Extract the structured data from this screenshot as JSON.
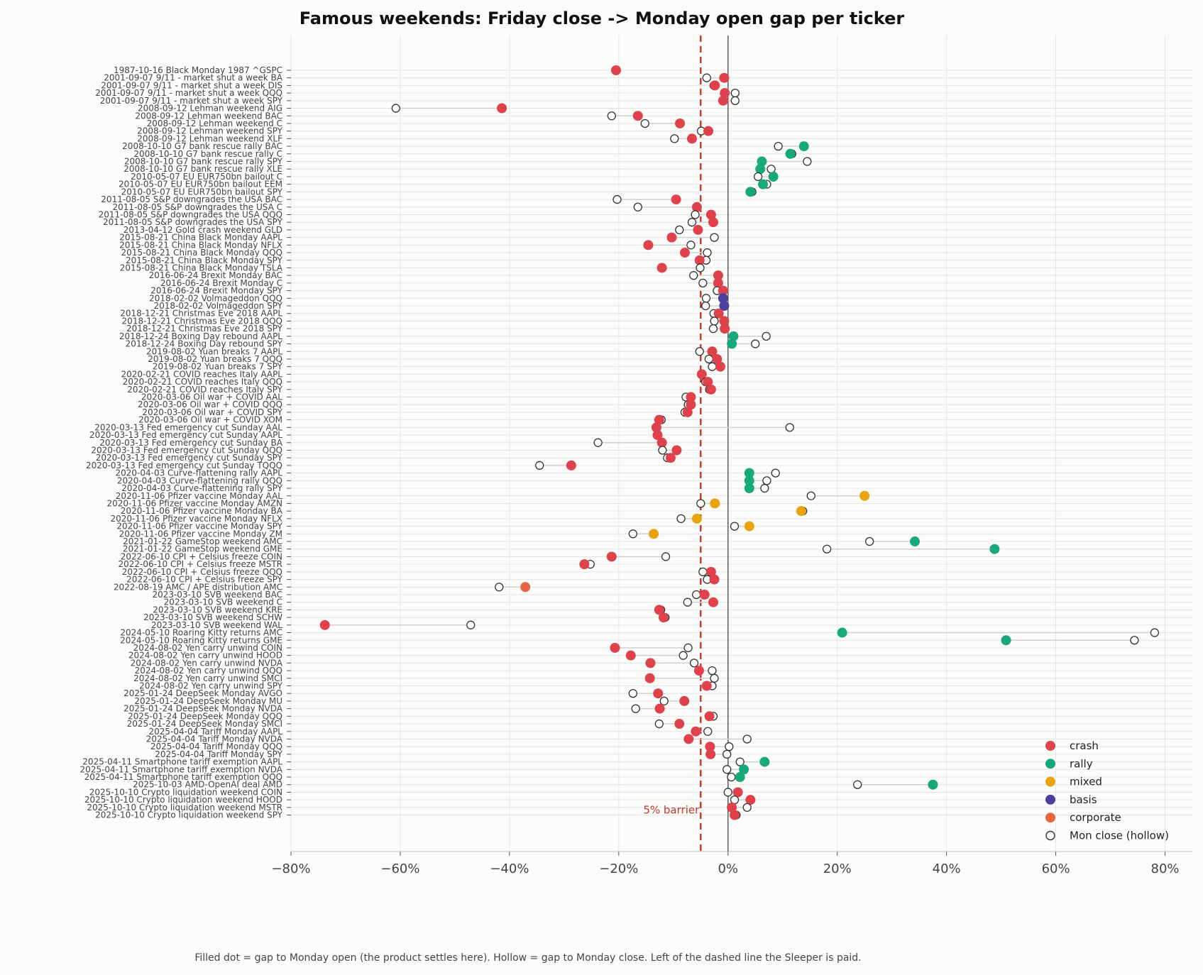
{
  "chart_data": {
    "type": "scatter",
    "title": "Famous weekends: Friday close -> Monday open gap per ticker",
    "xlabel": "",
    "ylabel": "",
    "xlim": [
      -80,
      85
    ],
    "xticks": [
      -80,
      -60,
      -40,
      -20,
      0,
      20,
      40,
      60,
      80
    ],
    "xtick_labels": [
      "−80%",
      "−60%",
      "−40%",
      "−20%",
      "0%",
      "20%",
      "40%",
      "60%",
      "80%"
    ],
    "grid": true,
    "legend_position": "bottom-right",
    "barrier": {
      "value": -5,
      "label": "5% barrier"
    },
    "caption": "Filled dot = gap to Monday open (the product settles here). Hollow = gap to Monday close. Left of the dashed line the Sleeper is paid.",
    "legend": [
      {
        "label": "crash",
        "color": "#e0424b",
        "style": "filled"
      },
      {
        "label": "rally",
        "color": "#17a97c",
        "style": "filled"
      },
      {
        "label": "mixed",
        "color": "#e8a30d",
        "style": "filled"
      },
      {
        "label": "basis",
        "color": "#4b3fa0",
        "style": "filled"
      },
      {
        "label": "corporate",
        "color": "#e8663d",
        "style": "filled"
      },
      {
        "label": "Mon close (hollow)",
        "color": "#333333",
        "style": "hollow"
      }
    ],
    "colors": {
      "crash": "#e0424b",
      "rally": "#17a97c",
      "mixed": "#e8a30d",
      "basis": "#4b3fa0",
      "corporate": "#e8663d"
    },
    "rows": [
      {
        "label": "1987-10-16  Black Monday 1987  ^GSPC",
        "cat": "crash",
        "open": -20.5,
        "close": null
      },
      {
        "label": "2001-09-07  9/11 - market shut a week  BA",
        "cat": "crash",
        "open": -0.7,
        "close": -3.9
      },
      {
        "label": "2001-09-07  9/11 - market shut a week  DIS",
        "cat": "crash",
        "open": -2.4,
        "close": -2.6
      },
      {
        "label": "2001-09-07  9/11 - market shut a week  QQQ",
        "cat": "crash",
        "open": -0.6,
        "close": 1.3
      },
      {
        "label": "2001-09-07  9/11 - market shut a week  SPY",
        "cat": "crash",
        "open": -0.9,
        "close": 1.3
      },
      {
        "label": "2008-09-12  Lehman weekend  AIG",
        "cat": "crash",
        "open": -41.4,
        "close": -60.8
      },
      {
        "label": "2008-09-12  Lehman weekend  BAC",
        "cat": "crash",
        "open": -16.5,
        "close": -21.3
      },
      {
        "label": "2008-09-12  Lehman weekend  C",
        "cat": "crash",
        "open": -8.8,
        "close": -15.2
      },
      {
        "label": "2008-09-12  Lehman weekend  SPY",
        "cat": "crash",
        "open": -3.6,
        "close": -4.9
      },
      {
        "label": "2008-09-12  Lehman weekend  XLF",
        "cat": "crash",
        "open": -6.6,
        "close": -9.8
      },
      {
        "label": "2008-10-10  G7 bank rescue rally  BAC",
        "cat": "rally",
        "open": 13.9,
        "close": 9.2
      },
      {
        "label": "2008-10-10  G7 bank rescue rally  C",
        "cat": "rally",
        "open": 11.4,
        "close": 11.7
      },
      {
        "label": "2008-10-10  G7 bank rescue rally  SPY",
        "cat": "rally",
        "open": 6.2,
        "close": 14.5
      },
      {
        "label": "2008-10-10  G7 bank rescue rally  XLE",
        "cat": "rally",
        "open": 5.9,
        "close": 7.9
      },
      {
        "label": "2010-05-07  EU EUR750bn bailout  C",
        "cat": "rally",
        "open": 8.3,
        "close": 5.5
      },
      {
        "label": "2010-05-07  EU EUR750bn bailout  EEM",
        "cat": "rally",
        "open": 6.4,
        "close": 7.1
      },
      {
        "label": "2010-05-07  EU EUR750bn bailout  SPY",
        "cat": "rally",
        "open": 4.1,
        "close": 4.4
      },
      {
        "label": "2011-08-05  S&P downgrades the USA  BAC",
        "cat": "crash",
        "open": -9.5,
        "close": -20.3
      },
      {
        "label": "2011-08-05  S&P downgrades the USA  C",
        "cat": "crash",
        "open": -5.7,
        "close": -16.5
      },
      {
        "label": "2011-08-05  S&P downgrades the USA  QQQ",
        "cat": "crash",
        "open": -3.1,
        "close": -6.0
      },
      {
        "label": "2011-08-05  S&P downgrades the USA  SPY",
        "cat": "crash",
        "open": -2.7,
        "close": -6.6
      },
      {
        "label": "2013-04-12  Gold crash weekend  GLD",
        "cat": "crash",
        "open": -5.5,
        "close": -8.9
      },
      {
        "label": "2015-08-21  China Black Monday  AAPL",
        "cat": "crash",
        "open": -10.3,
        "close": -2.5
      },
      {
        "label": "2015-08-21  China Black Monday  NFLX",
        "cat": "crash",
        "open": -14.6,
        "close": -6.8
      },
      {
        "label": "2015-08-21  China Black Monday  QQQ",
        "cat": "crash",
        "open": -7.9,
        "close": -3.8
      },
      {
        "label": "2015-08-21  China Black Monday  SPY",
        "cat": "crash",
        "open": -5.2,
        "close": -4.0
      },
      {
        "label": "2015-08-21  China Black Monday  TSLA",
        "cat": "crash",
        "open": -12.1,
        "close": -5.1
      },
      {
        "label": "2016-06-24  Brexit Monday  BAC",
        "cat": "crash",
        "open": -1.8,
        "close": -6.3
      },
      {
        "label": "2016-06-24  Brexit Monday  C",
        "cat": "crash",
        "open": -1.8,
        "close": -4.6
      },
      {
        "label": "2016-06-24  Brexit Monday  SPY",
        "cat": "crash",
        "open": -0.9,
        "close": -2.0
      },
      {
        "label": "2018-02-02  Volmageddon  QQQ",
        "cat": "basis",
        "open": -0.9,
        "close": -4.0
      },
      {
        "label": "2018-02-02  Volmageddon  SPY",
        "cat": "basis",
        "open": -0.7,
        "close": -4.1
      },
      {
        "label": "2018-12-21  Christmas Eve 2018  AAPL",
        "cat": "crash",
        "open": -1.7,
        "close": -2.6
      },
      {
        "label": "2018-12-21  Christmas Eve 2018  QQQ",
        "cat": "crash",
        "open": -0.7,
        "close": -2.5
      },
      {
        "label": "2018-12-21  Christmas Eve 2018  SPY",
        "cat": "crash",
        "open": -0.6,
        "close": -2.7
      },
      {
        "label": "2018-12-24  Boxing Day rebound  AAPL",
        "cat": "rally",
        "open": 1.0,
        "close": 7.0
      },
      {
        "label": "2018-12-24  Boxing Day rebound  SPY",
        "cat": "rally",
        "open": 0.7,
        "close": 5.0
      },
      {
        "label": "2019-08-02  Yuan breaks 7  AAPL",
        "cat": "crash",
        "open": -2.9,
        "close": -5.2
      },
      {
        "label": "2019-08-02  Yuan breaks 7  QQQ",
        "cat": "crash",
        "open": -2.0,
        "close": -3.5
      },
      {
        "label": "2019-08-02  Yuan breaks 7  SPY",
        "cat": "crash",
        "open": -1.4,
        "close": -2.9
      },
      {
        "label": "2020-02-21  COVID reaches Italy  AAPL",
        "cat": "crash",
        "open": -4.8,
        "close": -4.8
      },
      {
        "label": "2020-02-21  COVID reaches Italy  QQQ",
        "cat": "crash",
        "open": -3.7,
        "close": -4.1
      },
      {
        "label": "2020-02-21  COVID reaches Italy  SPY",
        "cat": "crash",
        "open": -3.1,
        "close": -3.4
      },
      {
        "label": "2020-03-06  Oil war + COVID  AAL",
        "cat": "crash",
        "open": -6.8,
        "close": -7.7
      },
      {
        "label": "2020-03-06  Oil war + COVID  QQQ",
        "cat": "crash",
        "open": -6.8,
        "close": -7.3
      },
      {
        "label": "2020-03-06  Oil war + COVID  SPY",
        "cat": "crash",
        "open": -7.4,
        "close": -7.9
      },
      {
        "label": "2020-03-06  Oil war + COVID  XOM",
        "cat": "crash",
        "open": -12.6,
        "close": -12.2
      },
      {
        "label": "2020-03-13  Fed emergency cut Sunday  AAL",
        "cat": "crash",
        "open": -13.1,
        "close": 11.3
      },
      {
        "label": "2020-03-13  Fed emergency cut Sunday  AAPL",
        "cat": "crash",
        "open": -12.9,
        "close": -12.9
      },
      {
        "label": "2020-03-13  Fed emergency cut Sunday  BA",
        "cat": "crash",
        "open": -12.1,
        "close": -23.8
      },
      {
        "label": "2020-03-13  Fed emergency cut Sunday  QQQ",
        "cat": "crash",
        "open": -9.4,
        "close": -12.0
      },
      {
        "label": "2020-03-13  Fed emergency cut Sunday  SPY",
        "cat": "crash",
        "open": -10.5,
        "close": -11.1
      },
      {
        "label": "2020-03-13  Fed emergency cut Sunday  TQQQ",
        "cat": "crash",
        "open": -28.7,
        "close": -34.5
      },
      {
        "label": "2020-04-03  Curve-flattening rally  AAPL",
        "cat": "rally",
        "open": 3.9,
        "close": 8.7
      },
      {
        "label": "2020-04-03  Curve-flattening rally  QQQ",
        "cat": "rally",
        "open": 3.9,
        "close": 7.1
      },
      {
        "label": "2020-04-03  Curve-flattening rally  SPY",
        "cat": "rally",
        "open": 3.9,
        "close": 6.7
      },
      {
        "label": "2020-11-06  Pfizer vaccine Monday  AAL",
        "cat": "mixed",
        "open": 25.0,
        "close": 15.2
      },
      {
        "label": "2020-11-06  Pfizer vaccine Monday  AMZN",
        "cat": "mixed",
        "open": -2.4,
        "close": -5.0
      },
      {
        "label": "2020-11-06  Pfizer vaccine Monday  BA",
        "cat": "mixed",
        "open": 13.4,
        "close": 13.7
      },
      {
        "label": "2020-11-06  Pfizer vaccine Monday  NFLX",
        "cat": "mixed",
        "open": -5.7,
        "close": -8.6
      },
      {
        "label": "2020-11-06  Pfizer vaccine Monday  SPY",
        "cat": "mixed",
        "open": 3.9,
        "close": 1.2
      },
      {
        "label": "2020-11-06  Pfizer vaccine Monday  ZM",
        "cat": "mixed",
        "open": -13.6,
        "close": -17.4
      },
      {
        "label": "2021-01-22  GameStop weekend  AMC",
        "cat": "rally",
        "open": 34.2,
        "close": 25.9
      },
      {
        "label": "2021-01-22  GameStop weekend  GME",
        "cat": "rally",
        "open": 48.8,
        "close": 18.1
      },
      {
        "label": "2022-06-10  CPI + Celsius freeze  COIN",
        "cat": "crash",
        "open": -21.3,
        "close": -11.4
      },
      {
        "label": "2022-06-10  CPI + Celsius freeze  MSTR",
        "cat": "crash",
        "open": -26.3,
        "close": -25.2
      },
      {
        "label": "2022-06-10  CPI + Celsius freeze  QQQ",
        "cat": "crash",
        "open": -3.1,
        "close": -4.6
      },
      {
        "label": "2022-06-10  CPI + Celsius freeze  SPY",
        "cat": "crash",
        "open": -2.5,
        "close": -3.8
      },
      {
        "label": "2022-08-19  AMC / APE distribution  AMC",
        "cat": "corporate",
        "open": -37.1,
        "close": -41.9
      },
      {
        "label": "2023-03-10  SVB weekend  BAC",
        "cat": "crash",
        "open": -4.3,
        "close": -5.8
      },
      {
        "label": "2023-03-10  SVB weekend  C",
        "cat": "crash",
        "open": -2.7,
        "close": -7.4
      },
      {
        "label": "2023-03-10  SVB weekend  KRE",
        "cat": "crash",
        "open": -12.6,
        "close": -12.3
      },
      {
        "label": "2023-03-10  SVB weekend  SCHW",
        "cat": "crash",
        "open": -11.8,
        "close": -11.5
      },
      {
        "label": "2023-03-10  SVB weekend  WAL",
        "cat": "crash",
        "open": -73.8,
        "close": -47.1
      },
      {
        "label": "2024-05-10  Roaring Kitty returns  AMC",
        "cat": "rally",
        "open": 20.9,
        "close": 78.1
      },
      {
        "label": "2024-05-10  Roaring Kitty returns  GME",
        "cat": "rally",
        "open": 50.9,
        "close": 74.4
      },
      {
        "label": "2024-08-02  Yen carry unwind  COIN",
        "cat": "crash",
        "open": -20.7,
        "close": -7.3
      },
      {
        "label": "2024-08-02  Yen carry unwind  HOOD",
        "cat": "crash",
        "open": -17.8,
        "close": -8.2
      },
      {
        "label": "2024-08-02  Yen carry unwind  NVDA",
        "cat": "crash",
        "open": -14.2,
        "close": -6.2
      },
      {
        "label": "2024-08-02  Yen carry unwind  QQQ",
        "cat": "crash",
        "open": -5.3,
        "close": -2.9
      },
      {
        "label": "2024-08-02  Yen carry unwind  SMCI",
        "cat": "crash",
        "open": -14.3,
        "close": -2.5
      },
      {
        "label": "2024-08-02  Yen carry unwind  SPY",
        "cat": "crash",
        "open": -3.9,
        "close": -2.9
      },
      {
        "label": "2025-01-24  DeepSeek Monday  AVGO",
        "cat": "crash",
        "open": -12.8,
        "close": -17.4
      },
      {
        "label": "2025-01-24  DeepSeek Monday  MU",
        "cat": "crash",
        "open": -8.0,
        "close": -11.7
      },
      {
        "label": "2025-01-24  DeepSeek Monday  NVDA",
        "cat": "crash",
        "open": -12.5,
        "close": -16.9
      },
      {
        "label": "2025-01-24  DeepSeek Monday  QQQ",
        "cat": "crash",
        "open": -3.4,
        "close": -2.7
      },
      {
        "label": "2025-01-24  DeepSeek Monday  SMCI",
        "cat": "crash",
        "open": -8.9,
        "close": -12.6
      },
      {
        "label": "2025-04-04  Tariff Monday  AAPL",
        "cat": "crash",
        "open": -5.9,
        "close": -3.7
      },
      {
        "label": "2025-04-04  Tariff Monday  NVDA",
        "cat": "crash",
        "open": -7.2,
        "close": 3.5
      },
      {
        "label": "2025-04-04  Tariff Monday  QQQ",
        "cat": "crash",
        "open": -3.3,
        "close": 0.2
      },
      {
        "label": "2025-04-04  Tariff Monday  SPY",
        "cat": "crash",
        "open": -3.2,
        "close": -0.2
      },
      {
        "label": "2025-04-11  Smartphone tariff exemption  AAPL",
        "cat": "rally",
        "open": 6.7,
        "close": 2.2
      },
      {
        "label": "2025-04-11  Smartphone tariff exemption  NVDA",
        "cat": "rally",
        "open": 2.9,
        "close": -0.2
      },
      {
        "label": "2025-04-11  Smartphone tariff exemption  QQQ",
        "cat": "rally",
        "open": 2.2,
        "close": 0.6
      },
      {
        "label": "2025-10-03  AMD-OpenAI deal  AMD",
        "cat": "rally",
        "open": 37.5,
        "close": 23.7
      },
      {
        "label": "2025-10-10  Crypto liquidation weekend  COIN",
        "cat": "crash",
        "open": 1.8,
        "close": 0.0
      },
      {
        "label": "2025-10-10  Crypto liquidation weekend  HOOD",
        "cat": "crash",
        "open": 4.1,
        "close": 1.2
      },
      {
        "label": "2025-10-10  Crypto liquidation weekend  MSTR",
        "cat": "crash",
        "open": 0.7,
        "close": 3.5
      },
      {
        "label": "2025-10-10  Crypto liquidation weekend  SPY",
        "cat": "crash",
        "open": 1.2,
        "close": 1.5
      }
    ]
  }
}
